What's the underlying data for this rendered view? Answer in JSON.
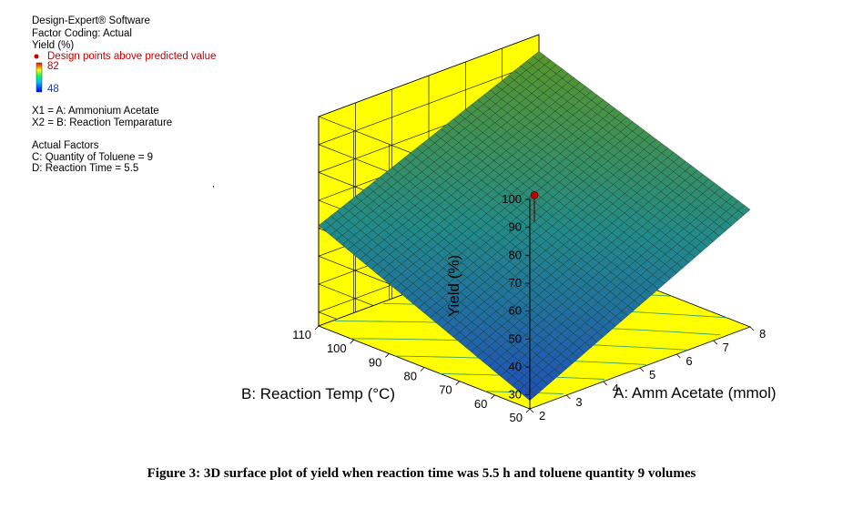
{
  "info": {
    "software": "Design-Expert® Software",
    "coding": "Factor Coding: Actual",
    "response": "Yield (%)",
    "design_points": "Design points above predicted value",
    "scale_max": "82",
    "scale_min": "48",
    "x1": "X1 = A: Ammonium Acetate",
    "x2": "X2 = B: Reaction Temparature",
    "actual_factors": "Actual Factors",
    "factor_c": "C: Quantity of Toluene = 9",
    "factor_d": "D: Reaction Time = 5.5"
  },
  "colors": {
    "panel": "#ffff00",
    "design_point": "#c00000",
    "surface_low": "#2a6fb0",
    "surface_high": "#4a8a30"
  },
  "chart_data": {
    "type": "surface3d",
    "zlabel": "Yield (%)",
    "xlabel": "A: Amm Acetate (mmol)",
    "ylabel": "B: Reaction Temp (°C)",
    "x_ticks": [
      "2",
      "3",
      "4",
      "5",
      "6",
      "7",
      "8"
    ],
    "y_ticks": [
      "50",
      "60",
      "70",
      "80",
      "90",
      "100",
      "110"
    ],
    "z_ticks": [
      "30",
      "40",
      "50",
      "60",
      "70",
      "80",
      "90",
      "100"
    ],
    "xlim": [
      2,
      8
    ],
    "ylim": [
      50,
      110
    ],
    "zlim": [
      25,
      100
    ],
    "corner_values": [
      {
        "x": 2,
        "y": 50,
        "z": 28
      },
      {
        "x": 8,
        "y": 50,
        "z": 67
      },
      {
        "x": 2,
        "y": 110,
        "z": 61
      },
      {
        "x": 8,
        "y": 110,
        "z": 94
      }
    ],
    "design_point": {
      "x": 5,
      "y": 80,
      "z": 66
    }
  },
  "caption": "Figure 3: 3D surface plot of yield when reaction time was 5.5 h and toluene quantity 9 volumes"
}
